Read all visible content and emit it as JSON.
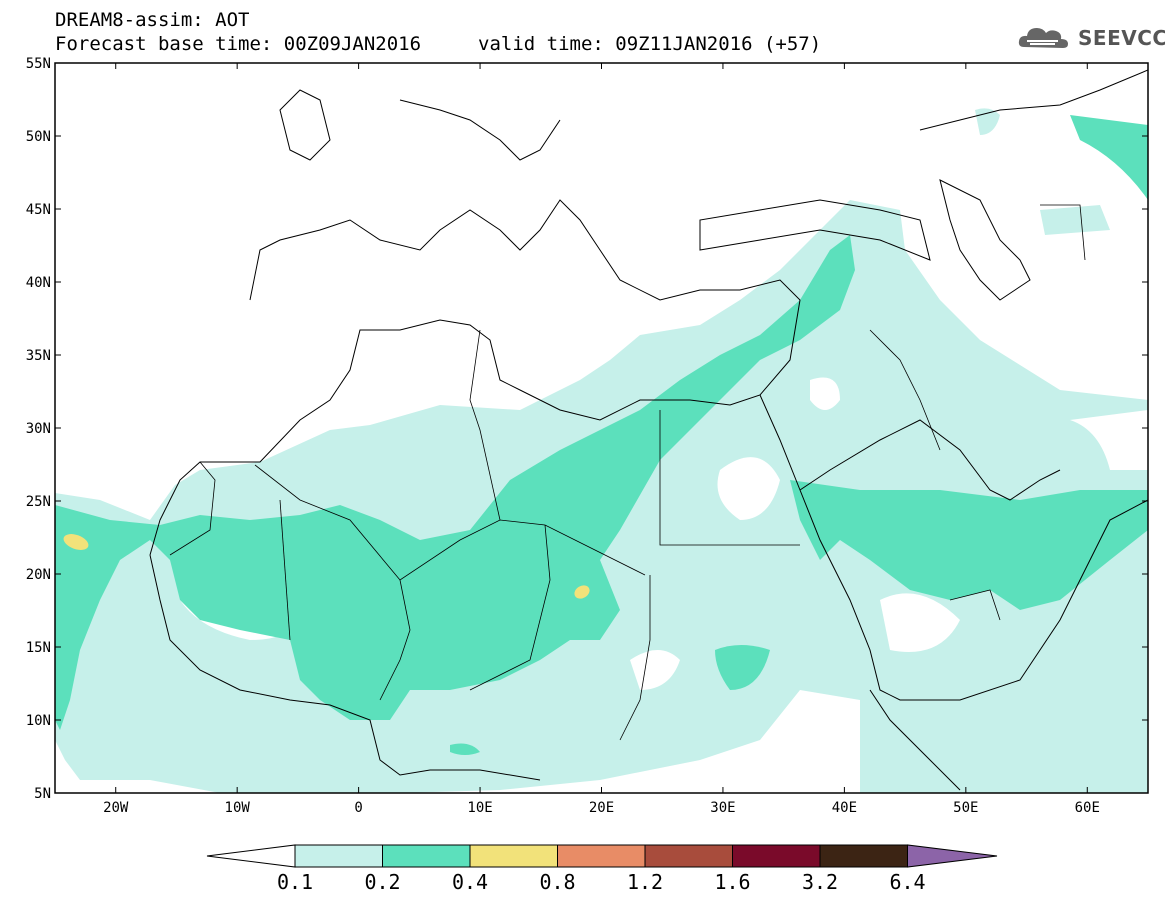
{
  "header": {
    "title_line1": "DREAM8-assim: AOT",
    "title_line2": "Forecast base time: 00Z09JAN2016",
    "valid_time": "valid time: 09Z11JAN2016 (+57)",
    "logo_text": "SEEVCCC"
  },
  "map": {
    "projection": "equirectangular",
    "lon_range": [
      -25,
      65
    ],
    "lat_range": [
      5,
      55
    ],
    "lat_ticks": [
      {
        "value": 55,
        "label": "55N"
      },
      {
        "value": 50,
        "label": "50N"
      },
      {
        "value": 45,
        "label": "45N"
      },
      {
        "value": 40,
        "label": "40N"
      },
      {
        "value": 35,
        "label": "35N"
      },
      {
        "value": 30,
        "label": "30N"
      },
      {
        "value": 25,
        "label": "25N"
      },
      {
        "value": 20,
        "label": "20N"
      },
      {
        "value": 15,
        "label": "15N"
      },
      {
        "value": 10,
        "label": "10N"
      },
      {
        "value": 5,
        "label": "5N"
      }
    ],
    "lon_ticks": [
      {
        "value": -20,
        "label": "20W"
      },
      {
        "value": -10,
        "label": "10W"
      },
      {
        "value": 0,
        "label": "0"
      },
      {
        "value": 10,
        "label": "10E"
      },
      {
        "value": 20,
        "label": "20E"
      },
      {
        "value": 30,
        "label": "30E"
      },
      {
        "value": 40,
        "label": "40E"
      },
      {
        "value": 50,
        "label": "50E"
      },
      {
        "value": 60,
        "label": "60E"
      }
    ],
    "background_color": "#ffffff",
    "border_color": "#000000"
  },
  "colorbar": {
    "labels": [
      "0.1",
      "0.2",
      "0.4",
      "0.8",
      "1.2",
      "1.6",
      "3.2",
      "6.4"
    ],
    "colors": [
      "#ffffff",
      "#c6f0ea",
      "#5ce0bc",
      "#f2e27a",
      "#e88c66",
      "#a84c3c",
      "#7a0a2a",
      "#3c2414",
      "#8c64a8"
    ]
  }
}
